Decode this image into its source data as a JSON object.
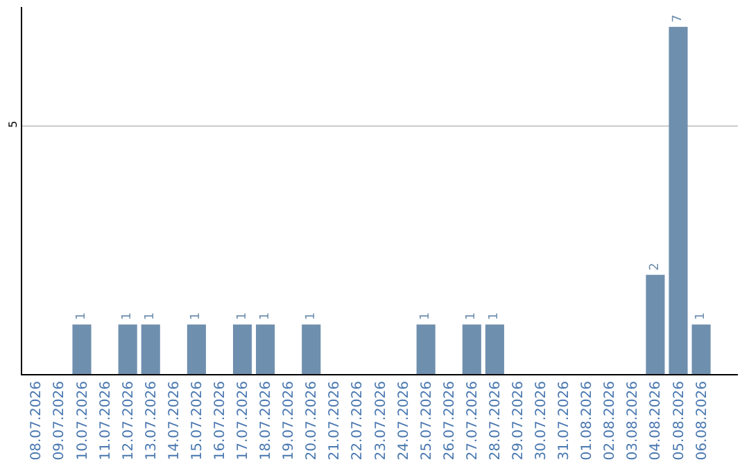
{
  "chart_data": {
    "type": "bar",
    "categories": [
      "08.07.2026",
      "09.07.2026",
      "10.07.2026",
      "11.07.2026",
      "12.07.2026",
      "13.07.2026",
      "14.07.2026",
      "15.07.2026",
      "16.07.2026",
      "17.07.2026",
      "18.07.2026",
      "19.07.2026",
      "20.07.2026",
      "21.07.2026",
      "22.07.2026",
      "23.07.2026",
      "24.07.2026",
      "25.07.2026",
      "26.07.2026",
      "27.07.2026",
      "28.07.2026",
      "29.07.2026",
      "30.07.2026",
      "31.07.2026",
      "01.08.2026",
      "02.08.2026",
      "03.08.2026",
      "04.08.2026",
      "05.08.2026",
      "06.08.2026"
    ],
    "values": [
      0,
      0,
      1,
      0,
      1,
      1,
      0,
      1,
      0,
      1,
      1,
      0,
      1,
      0,
      0,
      0,
      0,
      1,
      0,
      1,
      1,
      0,
      0,
      0,
      0,
      0,
      0,
      2,
      7,
      1
    ],
    "value_labels": [
      null,
      null,
      "1",
      null,
      "1",
      "1",
      null,
      "1",
      null,
      "1",
      "1",
      null,
      "1",
      null,
      null,
      null,
      null,
      "1",
      null,
      "1",
      "1",
      null,
      null,
      null,
      null,
      null,
      null,
      "2",
      "7",
      "1"
    ],
    "color": "#6f8fae",
    "ylim": [
      0,
      7.4
    ],
    "yticks": [
      5
    ],
    "grid": "y",
    "legend": false
  }
}
